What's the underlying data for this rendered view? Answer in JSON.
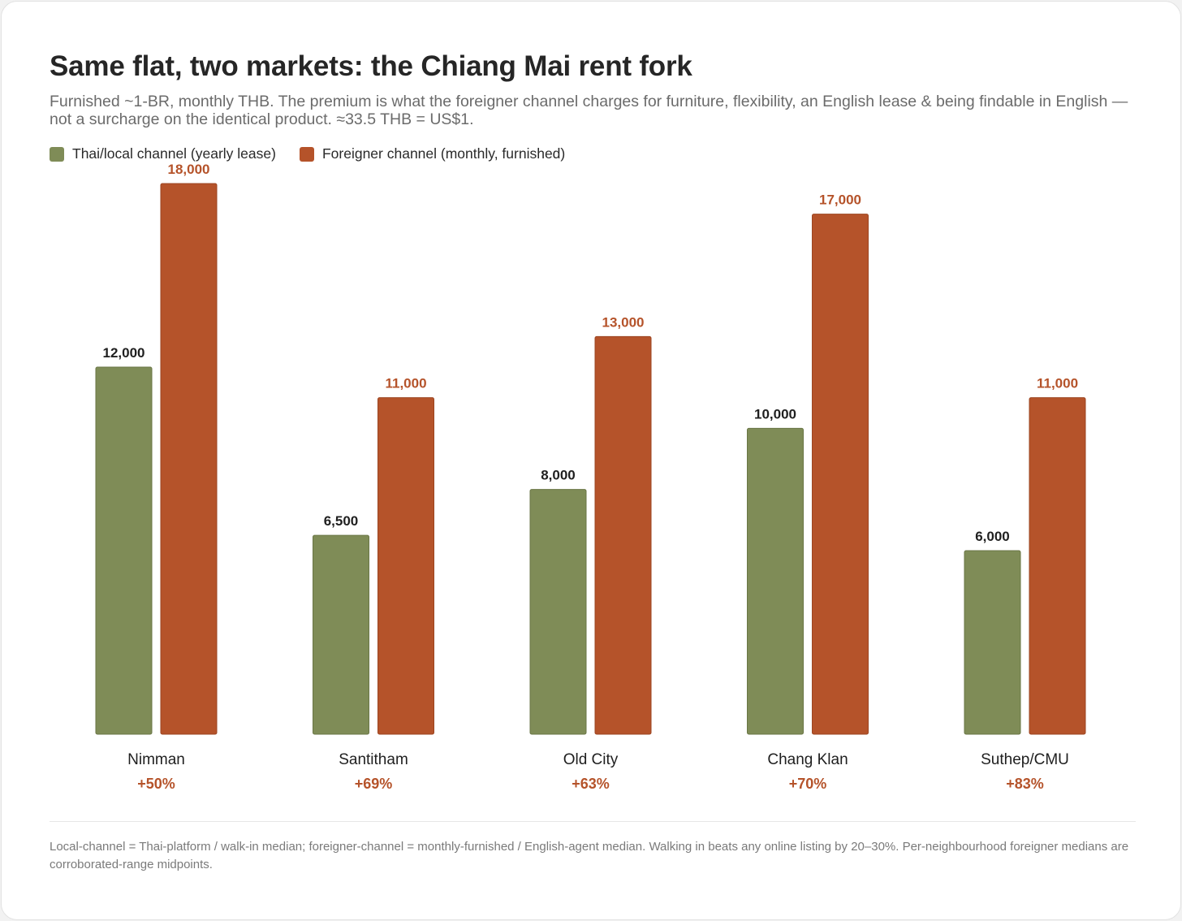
{
  "title": "Same flat, two markets: the Chiang Mai rent fork",
  "subtitle": "Furnished ~1-BR, monthly THB. The premium is what the foreigner channel charges for furniture, flexibility, an English lease & being findable in English — not a surcharge on the identical product. ≈33.5 THB = US$1.",
  "footnote": "Local-channel = Thai-platform / walk-in median; foreigner-channel = monthly-furnished / English-agent median. Walking in beats any online listing by 20–30%. Per-neighbourhood foreigner medians are corroborated-range midpoints.",
  "colors": {
    "local": "#7f8c57",
    "local_border": "#6a7646",
    "foreign": "#b5532a",
    "foreign_border": "#9c4521",
    "local_label": "#1f1f1f",
    "foreign_label": "#b5532a"
  },
  "chart_data": {
    "type": "bar",
    "title": "Same flat, two markets: the Chiang Mai rent fork",
    "categories": [
      "Nimman",
      "Santitham",
      "Old City",
      "Chang Klan",
      "Suthep/CMU"
    ],
    "series": [
      {
        "name": "Thai/local channel (yearly lease)",
        "values": [
          12000,
          6500,
          8000,
          10000,
          6000
        ],
        "labels": [
          "12,000",
          "6,500",
          "8,000",
          "10,000",
          "6,000"
        ]
      },
      {
        "name": "Foreigner channel (monthly, furnished)",
        "values": [
          18000,
          11000,
          13000,
          17000,
          11000
        ],
        "labels": [
          "18,000",
          "11,000",
          "13,000",
          "17,000",
          "11,000"
        ]
      }
    ],
    "premiums": [
      "+50%",
      "+69%",
      "+63%",
      "+70%",
      "+83%"
    ],
    "ylim": [
      0,
      18000
    ],
    "grid": false,
    "legend_position": "top-left"
  }
}
